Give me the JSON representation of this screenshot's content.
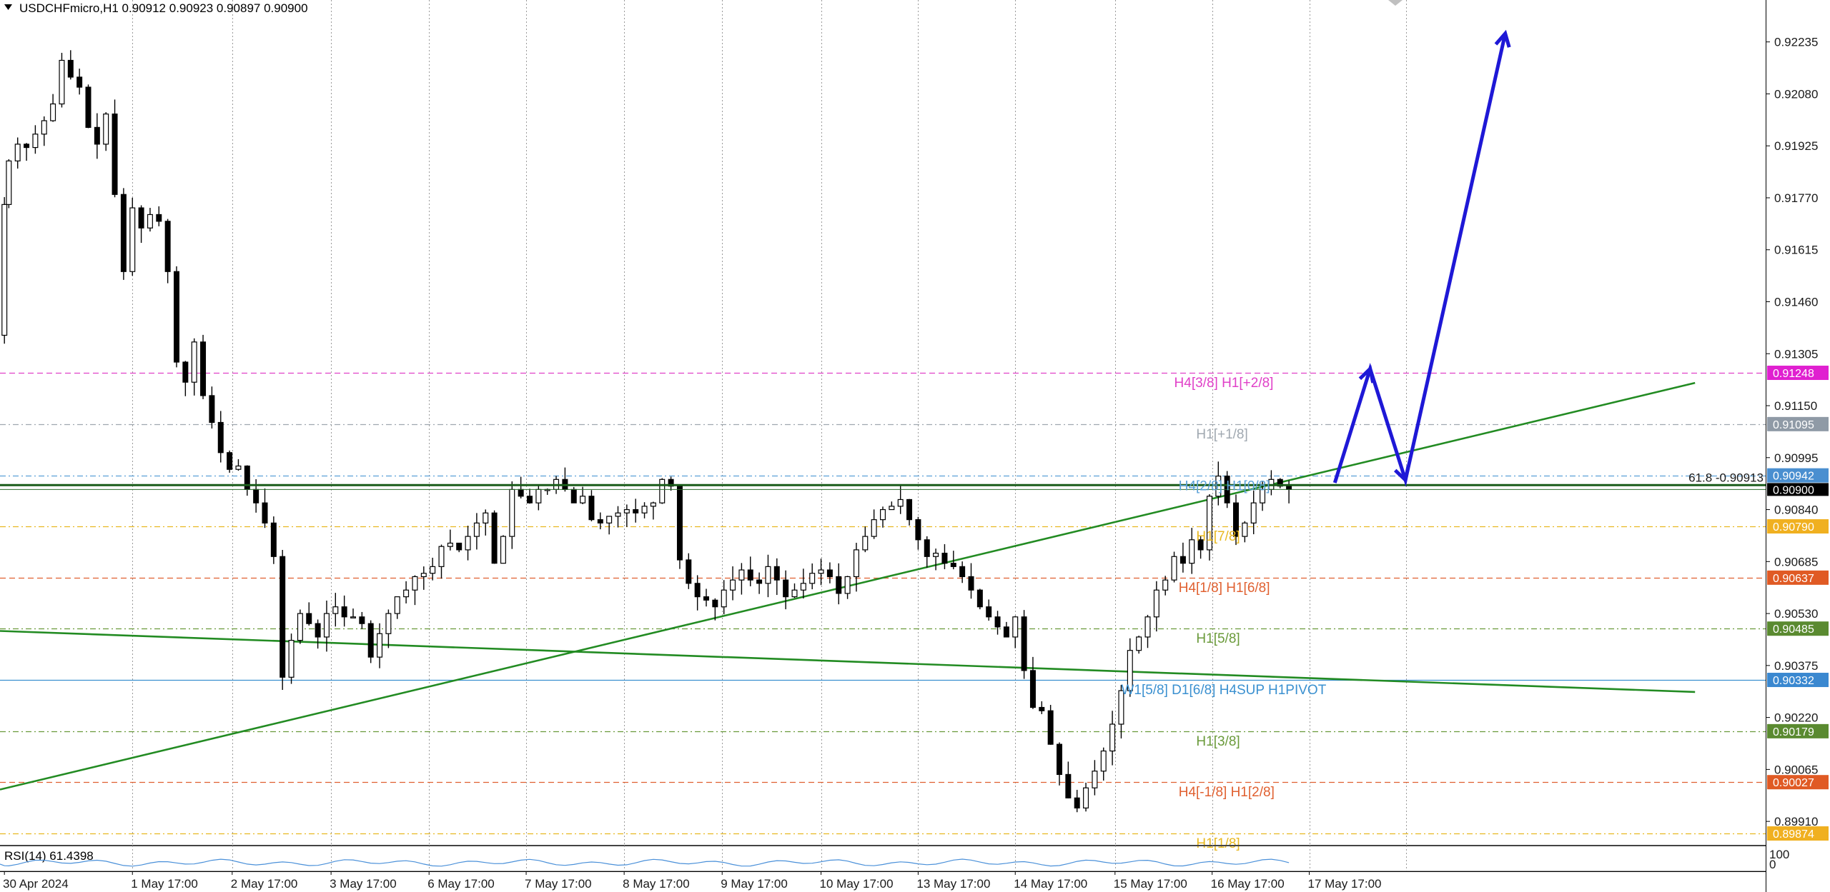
{
  "header": {
    "symbol_line": "USDCHFmicro,H1  0.90912 0.90923 0.90897 0.90900",
    "collapse_icon": "triangle-down-icon"
  },
  "indicator": {
    "label": "RSI(14) 61.4398",
    "scale_top": "100",
    "scale_bottom": "0"
  },
  "colors": {
    "background": "#ffffff",
    "candle": "#000000",
    "projection": "#1e18d6",
    "trendline": "#228b22",
    "rsi_line": "#4a90d9"
  },
  "chart_data": {
    "type": "candlestick",
    "symbol": "USDCHFmicro",
    "timeframe": "H1",
    "ylim": [
      0.8984,
      0.9236
    ],
    "xlim": [
      0,
      200
    ],
    "y_ticks": [
      "0.92235",
      "0.92080",
      "0.91925",
      "0.91770",
      "0.91615",
      "0.91460",
      "0.91305",
      "0.91150",
      "0.90995",
      "0.90840",
      "0.90685",
      "0.90530",
      "0.90375",
      "0.90220",
      "0.90065",
      "0.89910"
    ],
    "x_labels": [
      {
        "label": "30 Apr 2024",
        "x": 0.5
      },
      {
        "label": "1 May 17:00",
        "x": 15
      },
      {
        "label": "2 May 17:00",
        "x": 26.3
      },
      {
        "label": "3 May 17:00",
        "x": 37.5
      },
      {
        "label": "6 May 17:00",
        "x": 48.6
      },
      {
        "label": "7 May 17:00",
        "x": 59.6
      },
      {
        "label": "8 May 17:00",
        "x": 70.7
      },
      {
        "label": "9 May 17:00",
        "x": 81.8
      },
      {
        "label": "10 May 17:00",
        "x": 93
      },
      {
        "label": "13 May 17:00",
        "x": 104
      },
      {
        "label": "14 May 17:00",
        "x": 115
      },
      {
        "label": "15 May 17:00",
        "x": 126.3
      },
      {
        "label": "16 May 17:00",
        "x": 137.3
      },
      {
        "label": "17 May 17:00",
        "x": 148.3
      }
    ],
    "vgrid_x": [
      15,
      26.3,
      37.5,
      48.6,
      59.6,
      70.7,
      81.8,
      93,
      104,
      115,
      126.3,
      137.3,
      148.3,
      159.3
    ],
    "close_path": [
      [
        0,
        0.9136
      ],
      [
        0.5,
        0.9175
      ],
      [
        1,
        0.9188
      ],
      [
        2,
        0.9193
      ],
      [
        3,
        0.9192
      ],
      [
        4,
        0.9196
      ],
      [
        5,
        0.92
      ],
      [
        6,
        0.9205
      ],
      [
        7,
        0.9218
      ],
      [
        8,
        0.9213
      ],
      [
        9,
        0.921
      ],
      [
        10,
        0.9198
      ],
      [
        11,
        0.9193
      ],
      [
        12,
        0.9202
      ],
      [
        13,
        0.9178
      ],
      [
        14,
        0.9155
      ],
      [
        15,
        0.9174
      ],
      [
        16,
        0.9168
      ],
      [
        17,
        0.9172
      ],
      [
        18,
        0.917
      ],
      [
        19,
        0.9155
      ],
      [
        20,
        0.9128
      ],
      [
        21,
        0.9122
      ],
      [
        22,
        0.9134
      ],
      [
        23,
        0.9118
      ],
      [
        24,
        0.911
      ],
      [
        25,
        0.9101
      ],
      [
        26,
        0.9096
      ],
      [
        27,
        0.9097
      ],
      [
        28,
        0.909
      ],
      [
        29,
        0.9086
      ],
      [
        30,
        0.908
      ],
      [
        31,
        0.907
      ],
      [
        32,
        0.9034
      ],
      [
        33,
        0.9045
      ],
      [
        34,
        0.9053
      ],
      [
        35,
        0.905
      ],
      [
        36,
        0.9046
      ],
      [
        37,
        0.9053
      ],
      [
        38,
        0.9055
      ],
      [
        39,
        0.9052
      ],
      [
        40,
        0.9052
      ],
      [
        41,
        0.905
      ],
      [
        42,
        0.904
      ],
      [
        43,
        0.9047
      ],
      [
        44,
        0.9053
      ],
      [
        45,
        0.9058
      ],
      [
        46,
        0.906
      ],
      [
        47,
        0.9064
      ],
      [
        48,
        0.9065
      ],
      [
        49,
        0.9067
      ],
      [
        50,
        0.9073
      ],
      [
        51,
        0.9074
      ],
      [
        52,
        0.9072
      ],
      [
        53,
        0.9076
      ],
      [
        54,
        0.908
      ],
      [
        55,
        0.9083
      ],
      [
        56,
        0.9068
      ],
      [
        57,
        0.9076
      ],
      [
        58,
        0.909
      ],
      [
        59,
        0.9088
      ],
      [
        60,
        0.9086
      ],
      [
        61,
        0.909
      ],
      [
        62,
        0.909
      ],
      [
        63,
        0.9093
      ],
      [
        64,
        0.909
      ],
      [
        65,
        0.9086
      ],
      [
        66,
        0.9088
      ],
      [
        67,
        0.9081
      ],
      [
        68,
        0.908
      ],
      [
        69,
        0.9082
      ],
      [
        70,
        0.9083
      ],
      [
        71,
        0.9084
      ],
      [
        72,
        0.9083
      ],
      [
        73,
        0.9085
      ],
      [
        74,
        0.9086
      ],
      [
        75,
        0.9093
      ],
      [
        76,
        0.9091
      ],
      [
        77,
        0.9069
      ],
      [
        78,
        0.9062
      ],
      [
        79,
        0.9058
      ],
      [
        80,
        0.9057
      ],
      [
        81,
        0.9055
      ],
      [
        82,
        0.906
      ],
      [
        83,
        0.9063
      ],
      [
        84,
        0.9066
      ],
      [
        85,
        0.9063
      ],
      [
        86,
        0.9062
      ],
      [
        87,
        0.9067
      ],
      [
        88,
        0.9063
      ],
      [
        89,
        0.9058
      ],
      [
        90,
        0.906
      ],
      [
        91,
        0.9062
      ],
      [
        92,
        0.9065
      ],
      [
        93,
        0.9066
      ],
      [
        94,
        0.9064
      ],
      [
        95,
        0.9059
      ],
      [
        96,
        0.9064
      ],
      [
        97,
        0.9072
      ],
      [
        98,
        0.9076
      ],
      [
        99,
        0.9081
      ],
      [
        100,
        0.9084
      ],
      [
        101,
        0.9085
      ],
      [
        102,
        0.9087
      ],
      [
        103,
        0.9081
      ],
      [
        104,
        0.9075
      ],
      [
        105,
        0.907
      ],
      [
        106,
        0.9071
      ],
      [
        107,
        0.9068
      ],
      [
        108,
        0.9067
      ],
      [
        109,
        0.9064
      ],
      [
        110,
        0.906
      ],
      [
        111,
        0.9055
      ],
      [
        112,
        0.9052
      ],
      [
        113,
        0.9049
      ],
      [
        114,
        0.9046
      ],
      [
        115,
        0.9052
      ],
      [
        116,
        0.9036
      ],
      [
        117,
        0.9025
      ],
      [
        118,
        0.9024
      ],
      [
        119,
        0.9014
      ],
      [
        120,
        0.9005
      ],
      [
        121,
        0.8998
      ],
      [
        122,
        0.8995
      ],
      [
        123,
        0.9001
      ],
      [
        124,
        0.9006
      ],
      [
        125,
        0.9012
      ],
      [
        126,
        0.902
      ],
      [
        127,
        0.903
      ],
      [
        128,
        0.9042
      ],
      [
        129,
        0.9046
      ],
      [
        130,
        0.9052
      ],
      [
        131,
        0.906
      ],
      [
        132,
        0.9063
      ],
      [
        133,
        0.907
      ],
      [
        134,
        0.9068
      ],
      [
        135,
        0.9075
      ],
      [
        136,
        0.9072
      ],
      [
        137,
        0.9088
      ],
      [
        138,
        0.9094
      ],
      [
        139,
        0.9086
      ],
      [
        140,
        0.9076
      ],
      [
        141,
        0.908
      ],
      [
        142,
        0.9086
      ],
      [
        143,
        0.909
      ],
      [
        144,
        0.9093
      ],
      [
        145,
        0.9091
      ],
      [
        146,
        0.909
      ]
    ],
    "levels": [
      {
        "price": 0.91248,
        "badge": "0.91248",
        "label": "H4[3/8] H1[+2/8]",
        "color": "#e040c8",
        "badge_color": "#e020d0",
        "dash": "8,5",
        "label_x": 133,
        "label_dy": 4
      },
      {
        "price": 0.91095,
        "badge": "0.91095",
        "label": "H1[+1/8]",
        "color": "#a0a8b0",
        "badge_color": "#8f9aa6",
        "dash": "8,4,2,4",
        "label_x": 135.5,
        "label_dy": 4
      },
      {
        "price": 0.90942,
        "badge": "0.90942",
        "label": "H4[2/8] H1[0/8]",
        "color": "#5aa0d8",
        "badge_color": "#4a8fd0",
        "dash": "8,4,2,4",
        "label_x": 133.5,
        "label_dy": 5
      },
      {
        "price": 0.9079,
        "badge": "0.90790",
        "label": "H1[7/8]",
        "color": "#e8b820",
        "badge_color": "#f0b020",
        "dash": "8,4,2,4",
        "label_x": 135.5,
        "label_dy": 4
      },
      {
        "price": 0.90637,
        "badge": "0.90637",
        "label": "H4[1/8] H1[6/8]",
        "color": "#e06030",
        "badge_color": "#e05a24",
        "dash": "8,5",
        "label_x": 133.5,
        "label_dy": 4
      },
      {
        "price": 0.90485,
        "badge": "0.90485",
        "label": "H1[5/8]",
        "color": "#6a9a3a",
        "badge_color": "#5a8a30",
        "dash": "8,4,2,4",
        "label_x": 135.5,
        "label_dy": 4
      },
      {
        "price": 0.90332,
        "badge": "0.90332",
        "label": "W1[5/8] D1[6/8] H4SUP H1PIVOT",
        "color": "#3a90d0",
        "badge_color": "#3a88d0",
        "dash": "",
        "label_x": 127,
        "label_dy": 4
      },
      {
        "price": 0.90179,
        "badge": "0.90179",
        "label": "H1[3/8]",
        "color": "#6a9a3a",
        "badge_color": "#5a8a30",
        "dash": "8,4,2,4",
        "label_x": 135.5,
        "label_dy": 4
      },
      {
        "price": 0.90027,
        "badge": "0.90027",
        "label": "H4[-1/8] H1[2/8]",
        "color": "#e06030",
        "badge_color": "#e05a24",
        "dash": "8,5",
        "label_x": 133.5,
        "label_dy": 4
      },
      {
        "price": 0.89874,
        "badge": "0.89874",
        "label": "H1[1/8]",
        "color": "#e8b820",
        "badge_color": "#f0b020",
        "dash": "8,4,2,4",
        "label_x": 135.5,
        "label_dy": 4
      }
    ],
    "current_price": {
      "price": 0.909,
      "badge": "0.90900",
      "color": "#000000"
    },
    "fibo": {
      "label": "61.8 -0.90913",
      "price": 0.90913,
      "color": "#1f7a1f"
    },
    "trendlines": [
      {
        "x1": 0,
        "y1": 0.90478,
        "x2": 192,
        "y2": 0.90296
      },
      {
        "x1": 0,
        "y1": 0.90005,
        "x2": 192,
        "y2": 0.91218
      }
    ],
    "projection": [
      [
        151.2,
        0.9092
      ],
      [
        155.2,
        0.9126
      ],
      [
        159.2,
        0.90928
      ],
      [
        170.5,
        0.9226
      ]
    ],
    "rsi_value": 61.4398,
    "series": [
      {
        "name": "RSI(14)",
        "values": []
      }
    ]
  }
}
